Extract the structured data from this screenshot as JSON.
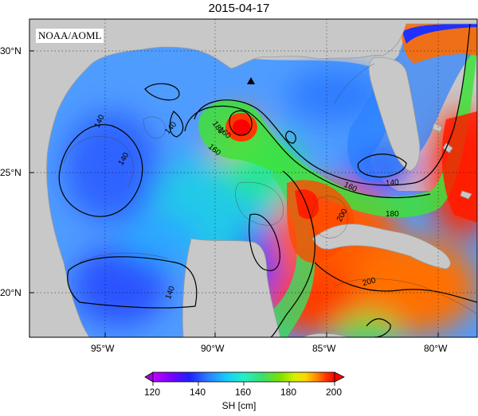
{
  "title": "2015-04-17",
  "credit": "NOAA/AOML",
  "map": {
    "lon_ticks": [
      "95°W",
      "90°W",
      "85°W",
      "80°W"
    ],
    "lat_ticks": [
      "30°N",
      "25°N",
      "20°N"
    ],
    "contour_labels": [
      "140",
      "140",
      "140",
      "140",
      "160",
      "160",
      "160",
      "180",
      "180",
      "200",
      "200",
      "140"
    ],
    "marker": "triangle-marker"
  },
  "colorbar": {
    "ticks": [
      "120",
      "140",
      "160",
      "180",
      "200"
    ],
    "label": "SH [cm]",
    "colors": [
      "#c000ff",
      "#7a00ff",
      "#2020ff",
      "#2a7bff",
      "#18c7ff",
      "#23f0c8",
      "#38e070",
      "#7fe000",
      "#d8f000",
      "#ffd500",
      "#ff8a00",
      "#ff3a00",
      "#ff0000"
    ]
  }
}
